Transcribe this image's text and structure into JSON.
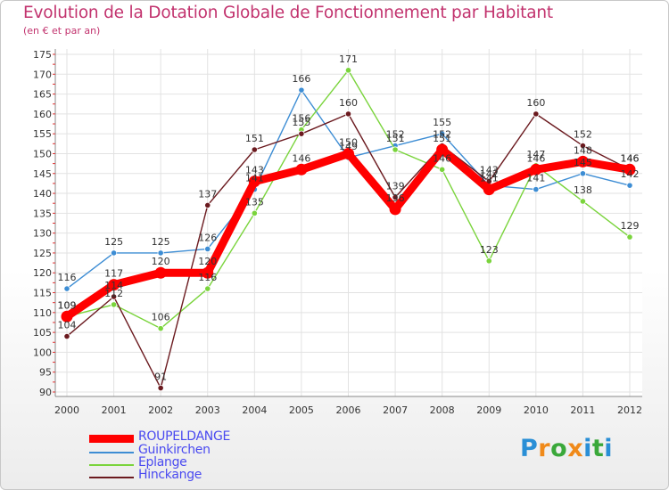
{
  "title": "Evolution de la Dotation Globale de Fonctionnement par Habitant",
  "subtitle": "(en € et par an)",
  "logo": {
    "letters": [
      {
        "ch": "P",
        "color": "#2a8fd6"
      },
      {
        "ch": "r",
        "color": "#f08a1a"
      },
      {
        "ch": "o",
        "color": "#3aa83a"
      },
      {
        "ch": "x",
        "color": "#f08a1a"
      },
      {
        "ch": "i",
        "color": "#2a8fd6"
      },
      {
        "ch": "t",
        "color": "#3aa83a"
      },
      {
        "ch": "i",
        "color": "#2a8fd6"
      }
    ]
  },
  "chart_data": {
    "type": "line",
    "title": "Evolution de la Dotation Globale de Fonctionnement par Habitant",
    "subtitle": "(en € et par an)",
    "xlabel": "",
    "ylabel": "",
    "x": [
      "2000",
      "2001",
      "2002",
      "2003",
      "2004",
      "2005",
      "2006",
      "2007",
      "2008",
      "2009",
      "2010",
      "2011",
      "2012"
    ],
    "ylim": [
      90,
      175
    ],
    "yticks": [
      90,
      95,
      100,
      105,
      110,
      115,
      120,
      125,
      130,
      135,
      140,
      145,
      150,
      155,
      160,
      165,
      170,
      175
    ],
    "grid": true,
    "legend_position": "bottom-left",
    "series": [
      {
        "name": "ROUPELDANGE",
        "color": "#ff0000",
        "values": [
          109,
          117,
          120,
          120,
          143,
          146,
          150,
          136,
          151,
          141,
          146,
          148,
          146
        ]
      },
      {
        "name": "Guinkirchen",
        "color": "#3d8dd4",
        "values": [
          116,
          125,
          125,
          126,
          141,
          166,
          149,
          152,
          155,
          142,
          141,
          145,
          142
        ]
      },
      {
        "name": "Eplange",
        "color": "#7ad43c",
        "values": [
          109,
          112,
          106,
          116,
          135,
          156,
          171,
          151,
          146,
          123,
          147,
          138,
          129
        ]
      },
      {
        "name": "Hinckange",
        "color": "#6b1a1f",
        "values": [
          104,
          114,
          91,
          137,
          151,
          155,
          160,
          139,
          152,
          143,
          160,
          152,
          146
        ]
      }
    ]
  }
}
